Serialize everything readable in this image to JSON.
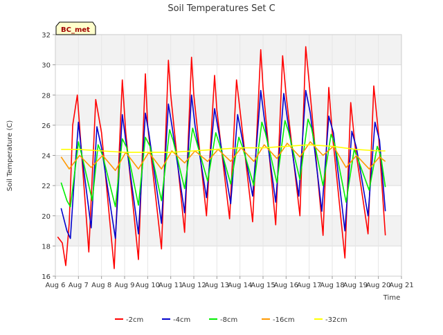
{
  "chart_data": {
    "type": "line",
    "title": "Soil Temperatures Set C",
    "xlabel": "Time",
    "ylabel": "Soil Temperature (C)",
    "station_label": "BC_met",
    "xlim": [
      6,
      21
    ],
    "ylim": [
      16,
      32
    ],
    "x_ticks": [
      {
        "value": 6,
        "label": "Aug 6"
      },
      {
        "value": 7,
        "label": "Aug 7"
      },
      {
        "value": 8,
        "label": "Aug 8"
      },
      {
        "value": 9,
        "label": "Aug 9"
      },
      {
        "value": 10,
        "label": "Aug 10"
      },
      {
        "value": 11,
        "label": "Aug 11"
      },
      {
        "value": 12,
        "label": "Aug 12"
      },
      {
        "value": 13,
        "label": "Aug 13"
      },
      {
        "value": 14,
        "label": "Aug 14"
      },
      {
        "value": 15,
        "label": "Aug 15"
      },
      {
        "value": 16,
        "label": "Aug 16"
      },
      {
        "value": 17,
        "label": "Aug 17"
      },
      {
        "value": 18,
        "label": "Aug 18"
      },
      {
        "value": 19,
        "label": "Aug 19"
      },
      {
        "value": 20,
        "label": "Aug 20"
      },
      {
        "value": 21,
        "label": "Aug 21"
      }
    ],
    "y_ticks": [
      16,
      18,
      20,
      22,
      24,
      26,
      28,
      30,
      32
    ],
    "grid": true,
    "legend_position": "bottom",
    "series": [
      {
        "name": "-2cm",
        "color": "#ff0000",
        "x": [
          6.1,
          6.3,
          6.45,
          6.6,
          6.75,
          6.95,
          7.45,
          7.75,
          8.0,
          8.55,
          8.9,
          9.05,
          9.6,
          9.9,
          10.0,
          10.6,
          10.9,
          11.0,
          11.6,
          11.9,
          12.0,
          12.55,
          12.9,
          13.0,
          13.55,
          13.85,
          14.0,
          14.55,
          14.9,
          15.0,
          15.55,
          15.85,
          16.0,
          16.6,
          16.85,
          17.0,
          17.6,
          17.85,
          18.0,
          18.55,
          18.8,
          19.0,
          19.55,
          19.8,
          20.0,
          20.3
        ],
        "y": [
          18.6,
          18.2,
          16.7,
          19.5,
          26.0,
          28.0,
          17.6,
          27.7,
          25.5,
          16.5,
          29.0,
          25.5,
          17.1,
          29.4,
          26.0,
          17.8,
          30.3,
          28.0,
          18.9,
          30.5,
          28.0,
          20.0,
          29.3,
          27.0,
          19.8,
          29.0,
          27.0,
          19.6,
          31.0,
          28.5,
          19.4,
          30.6,
          28.0,
          20.0,
          31.2,
          28.8,
          18.7,
          28.5,
          25.5,
          17.2,
          27.5,
          24.5,
          18.8,
          28.6,
          25.5,
          18.7
        ]
      },
      {
        "name": "-4cm",
        "color": "#0000cc",
        "x": [
          6.25,
          6.5,
          6.65,
          6.8,
          7.0,
          7.15,
          7.55,
          7.8,
          8.0,
          8.6,
          8.9,
          9.05,
          9.6,
          9.9,
          10.05,
          10.6,
          10.9,
          11.05,
          11.6,
          11.9,
          12.05,
          12.55,
          12.9,
          13.05,
          13.6,
          13.9,
          14.05,
          14.55,
          14.9,
          15.05,
          15.55,
          15.9,
          16.05,
          16.55,
          16.85,
          17.05,
          17.55,
          17.85,
          18.05,
          18.55,
          18.85,
          19.05,
          19.55,
          19.85,
          20.05,
          20.3
        ],
        "y": [
          20.5,
          19.0,
          18.5,
          22.0,
          26.2,
          24.0,
          19.2,
          25.9,
          24.5,
          18.5,
          26.7,
          25.0,
          18.8,
          26.8,
          25.5,
          19.5,
          27.4,
          26.0,
          20.2,
          28.0,
          26.0,
          21.2,
          27.1,
          25.8,
          20.8,
          26.7,
          25.5,
          21.3,
          28.3,
          26.5,
          20.9,
          28.1,
          26.5,
          21.3,
          28.3,
          26.8,
          20.3,
          26.6,
          25.5,
          19.0,
          25.6,
          24.5,
          20.0,
          26.2,
          25.0,
          20.3
        ]
      },
      {
        "name": "-8cm",
        "color": "#00ee00",
        "x": [
          6.25,
          6.5,
          6.65,
          6.85,
          7.0,
          7.15,
          7.6,
          7.85,
          8.05,
          8.6,
          8.9,
          9.1,
          9.6,
          9.9,
          10.1,
          10.6,
          10.95,
          11.1,
          11.6,
          11.95,
          12.1,
          12.6,
          12.95,
          13.1,
          13.6,
          13.95,
          14.1,
          14.6,
          14.95,
          15.1,
          15.6,
          15.95,
          16.1,
          16.6,
          16.95,
          17.1,
          17.6,
          17.95,
          18.1,
          18.6,
          18.95,
          19.1,
          19.6,
          19.95,
          20.1,
          20.3
        ],
        "y": [
          22.2,
          21.0,
          20.6,
          23.0,
          24.9,
          24.0,
          21.0,
          24.7,
          24.0,
          20.6,
          25.1,
          24.5,
          20.7,
          25.2,
          24.6,
          21.0,
          25.7,
          25.0,
          21.8,
          25.8,
          25.0,
          22.3,
          25.5,
          24.8,
          22.1,
          25.2,
          24.6,
          22.0,
          26.2,
          25.5,
          22.2,
          26.3,
          25.6,
          22.4,
          26.4,
          25.8,
          22.0,
          25.4,
          24.8,
          20.9,
          24.4,
          23.8,
          21.7,
          24.6,
          24.0,
          21.9
        ]
      },
      {
        "name": "-16cm",
        "color": "#ff9900",
        "x": [
          6.25,
          6.6,
          7.05,
          7.55,
          8.05,
          8.6,
          9.05,
          9.6,
          10.05,
          10.6,
          11.05,
          11.6,
          12.05,
          12.6,
          13.05,
          13.6,
          14.05,
          14.6,
          15.05,
          15.6,
          16.05,
          16.6,
          17.05,
          17.6,
          18.05,
          18.6,
          19.05,
          19.6,
          20.05,
          20.3
        ],
        "y": [
          23.9,
          23.1,
          24.0,
          23.2,
          24.0,
          23.0,
          24.2,
          23.1,
          24.2,
          23.1,
          24.3,
          23.5,
          24.3,
          23.6,
          24.4,
          23.6,
          24.5,
          23.6,
          24.7,
          23.8,
          24.8,
          23.9,
          24.9,
          24.0,
          24.6,
          23.2,
          24.0,
          23.1,
          23.9,
          23.6
        ]
      },
      {
        "name": "-32cm",
        "color": "#ffff00",
        "x": [
          6.25,
          7.0,
          8.0,
          9.0,
          10.0,
          11.0,
          12.0,
          13.0,
          14.0,
          15.0,
          16.0,
          17.0,
          18.0,
          19.0,
          20.0,
          20.3
        ],
        "y": [
          24.4,
          24.4,
          24.3,
          24.2,
          24.2,
          24.2,
          24.3,
          24.4,
          24.5,
          24.5,
          24.6,
          24.7,
          24.6,
          24.4,
          24.3,
          24.3
        ]
      }
    ]
  }
}
